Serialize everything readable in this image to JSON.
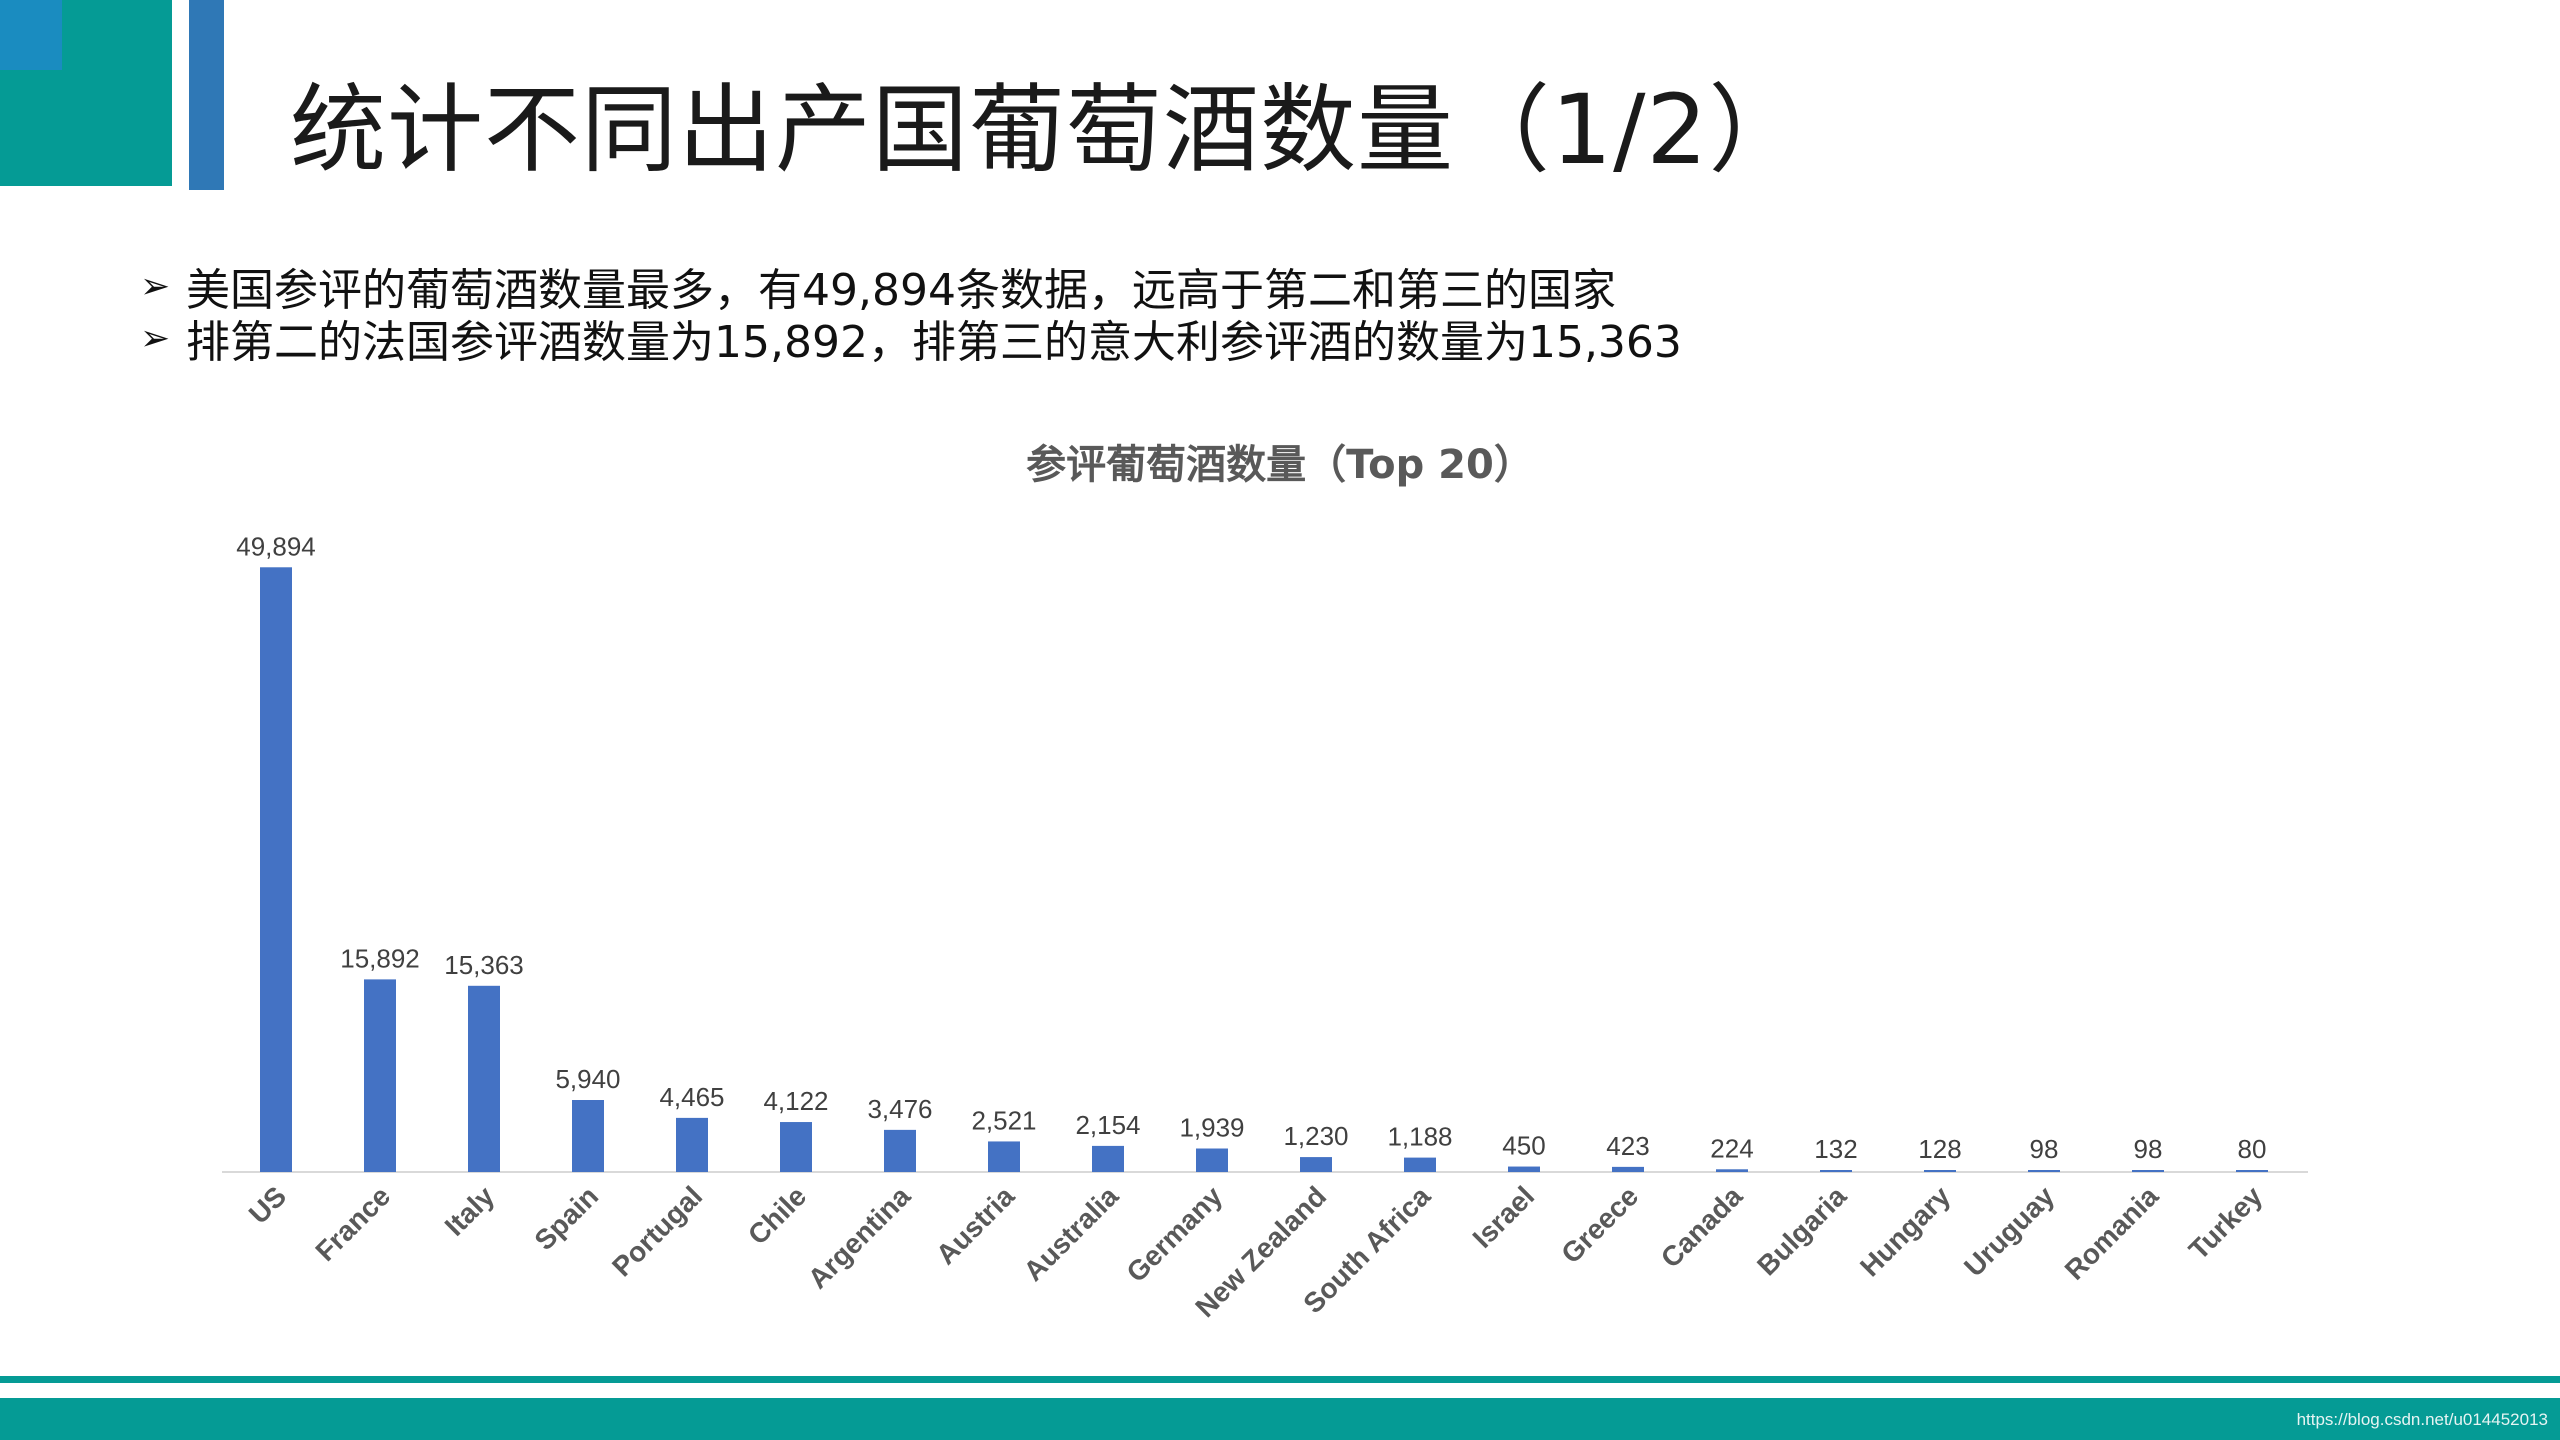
{
  "slide": {
    "title": "统计不同出产国葡萄酒数量（1/2）",
    "bullets": [
      "美国参评的葡萄酒数量最多，有49,894条数据，远高于第二和第三的国家",
      "排第二的法国参评酒数量为15,892，排第三的意大利参评酒的数量为15,363"
    ],
    "bullet_marker": "➢",
    "watermark": "https://blog.csdn.net/u014452013"
  },
  "colors": {
    "teal": "#059b95",
    "blue": "#2f78b6",
    "bar": "#4472c4"
  },
  "chart_data": {
    "type": "bar",
    "title": "参评葡萄酒数量（Top 20）",
    "categories": [
      "US",
      "France",
      "Italy",
      "Spain",
      "Portugal",
      "Chile",
      "Argentina",
      "Austria",
      "Australia",
      "Germany",
      "New Zealand",
      "South Africa",
      "Israel",
      "Greece",
      "Canada",
      "Bulgaria",
      "Hungary",
      "Uruguay",
      "Romania",
      "Turkey"
    ],
    "values": [
      49894,
      15892,
      15363,
      5940,
      4465,
      4122,
      3476,
      2521,
      2154,
      1939,
      1230,
      1188,
      450,
      423,
      224,
      132,
      128,
      98,
      98,
      80
    ],
    "data_labels": [
      "49,894",
      "15,892",
      "15,363",
      "5,940",
      "4,465",
      "4,122",
      "3,476",
      "2,521",
      "2,154",
      "1,939",
      "1,230",
      "1,188",
      "450",
      "423",
      "224",
      "132",
      "128",
      "98",
      "98",
      "80"
    ],
    "ylim": [
      0,
      50000
    ],
    "grid": false,
    "legend": "none"
  }
}
